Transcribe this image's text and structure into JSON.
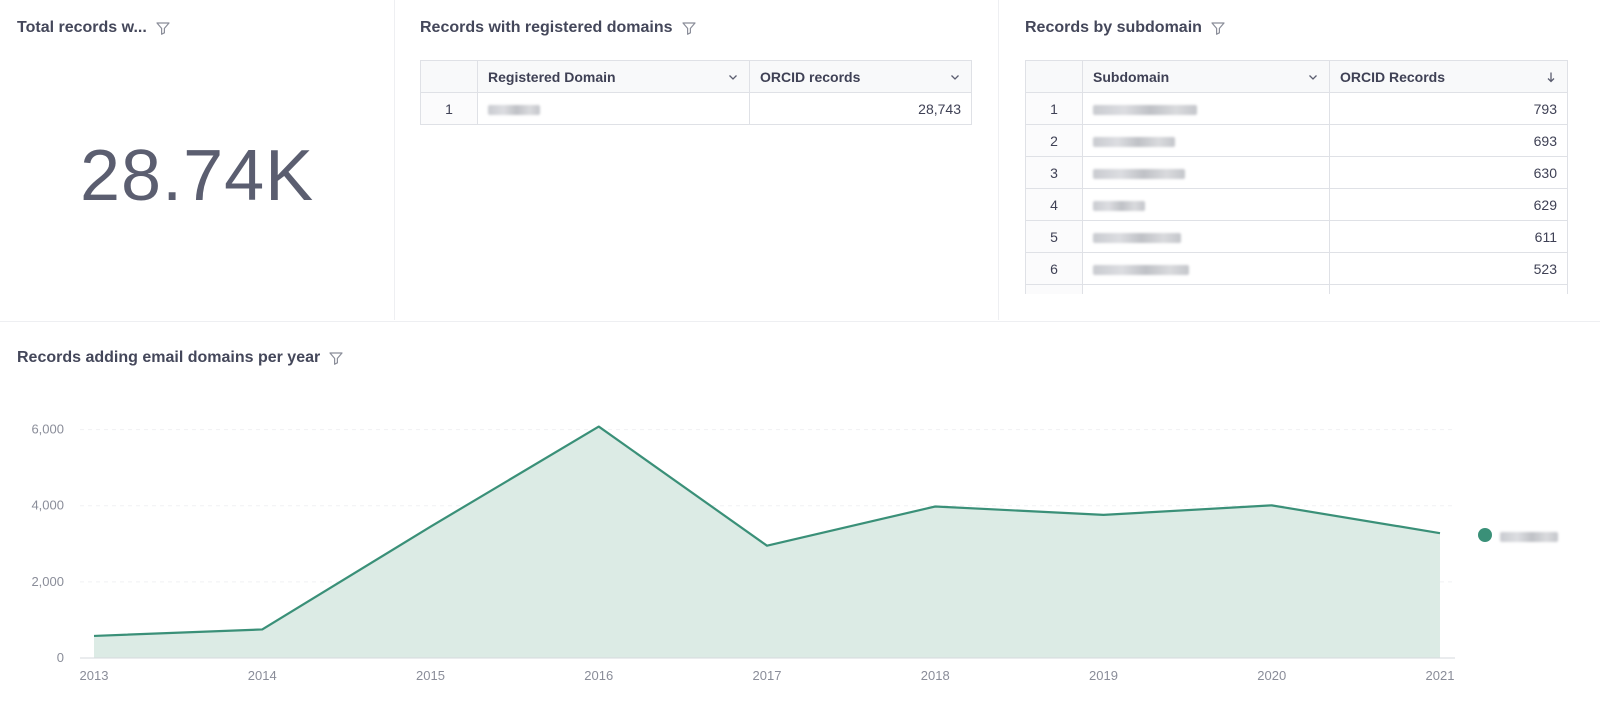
{
  "panels": {
    "total": {
      "title": "Total records w...",
      "value": "28.74K"
    },
    "registered": {
      "title": "Records with registered domains",
      "columns": [
        "",
        "Registered Domain",
        "ORCID records"
      ],
      "rows": [
        {
          "index": "1",
          "domain": "",
          "records": "28,743"
        }
      ]
    },
    "subdomain": {
      "title": "Records by subdomain",
      "columns": [
        "",
        "Subdomain",
        "ORCID Records"
      ],
      "rows": [
        {
          "index": "1",
          "subdomain": "",
          "records": "793"
        },
        {
          "index": "2",
          "subdomain": "",
          "records": "693"
        },
        {
          "index": "3",
          "subdomain": "",
          "records": "630"
        },
        {
          "index": "4",
          "subdomain": "",
          "records": "629"
        },
        {
          "index": "5",
          "subdomain": "",
          "records": "611"
        },
        {
          "index": "6",
          "subdomain": "",
          "records": "523"
        }
      ]
    },
    "chart": {
      "title": "Records adding email domains per year"
    }
  },
  "colors": {
    "accent": "#3a9078",
    "area_fill": "#dcebe5",
    "title_text": "#44475a",
    "grid": "#f0f1f3"
  },
  "icons": {
    "filter": "filter-funnel-icon",
    "chevron": "chevron-down-icon",
    "sort": "sort-arrow-down-icon"
  },
  "chart_data": {
    "type": "area",
    "x": [
      "2013",
      "2014",
      "2015",
      "2016",
      "2017",
      "2018",
      "2019",
      "2020",
      "2021"
    ],
    "series": [
      {
        "name": "",
        "values": [
          580,
          750,
          3450,
          6080,
          2950,
          3980,
          3760,
          4010,
          3280
        ]
      }
    ],
    "yticks": [
      "0",
      "2,000",
      "4,000",
      "6,000"
    ],
    "ylim": [
      0,
      6200
    ],
    "grid": true,
    "legend": "right"
  }
}
